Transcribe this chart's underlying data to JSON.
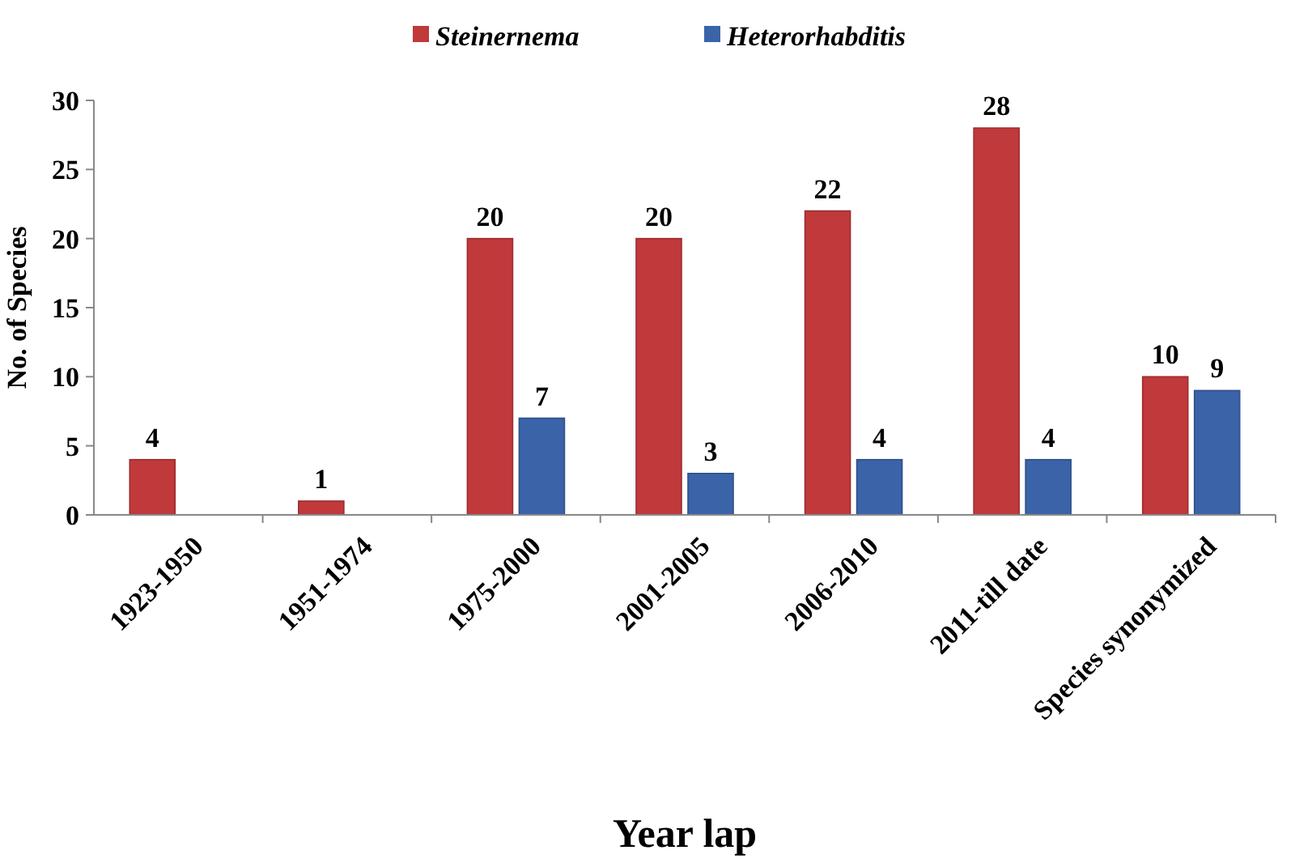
{
  "chart_data": {
    "type": "bar",
    "xlabel": "Year lap",
    "ylabel": "No. of Species",
    "categories": [
      "1923-1950",
      "1951-1974",
      "1975-2000",
      "2001-2005",
      "2006-2010",
      "2011-till date",
      "Species synonymized"
    ],
    "series": [
      {
        "name": "Steinernema",
        "color": "#c0393b",
        "values": [
          4,
          1,
          20,
          20,
          22,
          28,
          10
        ]
      },
      {
        "name": "Heterorhabditis",
        "color": "#3b63a8",
        "values": [
          null,
          null,
          7,
          3,
          4,
          4,
          9
        ]
      }
    ],
    "ylim": [
      0,
      30
    ],
    "yticks": [
      0,
      5,
      10,
      15,
      20,
      25,
      30
    ],
    "data_labels": true,
    "legend": "top",
    "grid": false
  }
}
